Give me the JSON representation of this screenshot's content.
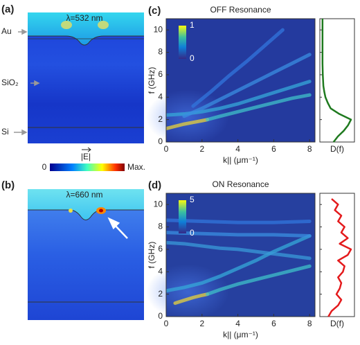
{
  "field_panels": [
    {
      "label": "(a)",
      "caption": "λ=532 nm",
      "layers": [
        "Au",
        "SiO₂",
        "Si"
      ]
    },
    {
      "label": "(b)",
      "caption": "λ=660 nm"
    }
  ],
  "field_colorbar": {
    "label": "|E|",
    "low": 0,
    "high": "Max."
  },
  "chart_data": [
    {
      "type": "line",
      "panel_label": "(c)",
      "title": "OFF Resonance",
      "xlabel": "k|| (μm⁻¹)",
      "ylabel": "f (GHz)",
      "xlim": [
        0,
        8.3
      ],
      "xticks": [
        0,
        2,
        4,
        6,
        8
      ],
      "ylim": [
        0,
        11
      ],
      "yticks": [
        0,
        2,
        4,
        6,
        8,
        10
      ],
      "background": "#243a9e",
      "colorbar": {
        "ticks": [
          0,
          1
        ]
      },
      "series": [
        {
          "color": "#e8d23a",
          "x": [
            0,
            0.5,
            1,
            1.5,
            2,
            2.3
          ],
          "values": [
            1.2,
            1.4,
            1.6,
            1.75,
            1.9,
            2.0
          ]
        },
        {
          "color": "#3fc0c8",
          "x": [
            2.3,
            3,
            4,
            5,
            6,
            7,
            8
          ],
          "values": [
            2.0,
            2.3,
            2.7,
            3.1,
            3.5,
            3.9,
            4.2
          ]
        },
        {
          "color": "#36a8d8",
          "x": [
            0,
            1,
            2,
            3,
            4,
            5,
            6,
            7,
            8
          ],
          "values": [
            2.4,
            2.5,
            2.7,
            3.0,
            3.4,
            3.9,
            4.4,
            4.9,
            5.4
          ]
        },
        {
          "color": "#3a8ee0",
          "x": [
            1,
            2,
            3,
            4,
            5,
            6,
            7,
            8
          ],
          "values": [
            2.3,
            3.0,
            3.8,
            4.6,
            5.4,
            6.2,
            7.0,
            7.8
          ]
        },
        {
          "color": "#3275dc",
          "x": [
            1.5,
            2.5,
            3.5,
            4.5,
            5.5,
            6.5
          ],
          "values": [
            3.2,
            4.5,
            5.9,
            7.2,
            8.6,
            10.0
          ]
        }
      ],
      "density": {
        "xlabel": "D(f)",
        "color": "#1f7a1f",
        "f": [
          0,
          0.5,
          1,
          1.5,
          2,
          2.5,
          3,
          3.5,
          4,
          4.5,
          5,
          6,
          7,
          8,
          9,
          10,
          11
        ],
        "values": [
          0.4,
          0.55,
          0.75,
          0.9,
          1.0,
          0.6,
          0.3,
          0.2,
          0.12,
          0.08,
          0.05,
          0.03,
          0.02,
          0.02,
          0.02,
          0.02,
          0.02
        ]
      }
    },
    {
      "type": "line",
      "panel_label": "(d)",
      "title": "ON Resonance",
      "xlabel": "k|| (μm⁻¹)",
      "ylabel": "f (GHz)",
      "xlim": [
        0,
        8.3
      ],
      "xticks": [
        0,
        2,
        4,
        6,
        8
      ],
      "ylim": [
        0,
        11
      ],
      "yticks": [
        0,
        2,
        4,
        6,
        8,
        10
      ],
      "background": "#26409f",
      "colorbar": {
        "ticks": [
          0,
          5
        ]
      },
      "series": [
        {
          "color": "#e8d23a",
          "x": [
            0.5,
            1,
            1.5,
            2,
            2.3
          ],
          "values": [
            1.2,
            1.45,
            1.7,
            1.9,
            2.0
          ]
        },
        {
          "color": "#3fc0c8",
          "x": [
            2.3,
            3,
            4,
            5,
            6,
            7,
            8
          ],
          "values": [
            2.0,
            2.4,
            2.9,
            3.3,
            3.7,
            4.1,
            4.5
          ]
        },
        {
          "color": "#36a8d8",
          "x": [
            0,
            1,
            2,
            3,
            4,
            5,
            6,
            7,
            8
          ],
          "values": [
            2.3,
            2.6,
            3.0,
            3.6,
            4.3,
            5.0,
            5.8,
            6.5,
            7.2
          ]
        },
        {
          "color": "#3a9ad8",
          "x": [
            0,
            1,
            2,
            3,
            4,
            5,
            6,
            7,
            8
          ],
          "values": [
            6.6,
            6.5,
            6.3,
            6.1,
            6.0,
            5.8,
            5.6,
            5.4,
            5.2
          ]
        },
        {
          "color": "#3a8ee0",
          "x": [
            0,
            2,
            4,
            6,
            8
          ],
          "values": [
            7.5,
            7.4,
            7.3,
            7.3,
            7.2
          ]
        },
        {
          "color": "#3275dc",
          "x": [
            0,
            2,
            4,
            6,
            8
          ],
          "values": [
            8.6,
            8.5,
            8.4,
            8.4,
            8.5
          ]
        }
      ],
      "density": {
        "xlabel": "D(f)",
        "color": "#e41a1c",
        "f": [
          0,
          0.5,
          1,
          1.5,
          2,
          2.5,
          3,
          3.5,
          4,
          4.5,
          5,
          5.5,
          6,
          6.5,
          7,
          7.5,
          8,
          8.5,
          9,
          9.5,
          10,
          10.5
        ],
        "values": [
          0.2,
          0.3,
          0.5,
          0.6,
          0.45,
          0.55,
          0.6,
          0.5,
          0.65,
          0.7,
          0.5,
          0.8,
          0.9,
          0.55,
          0.8,
          0.6,
          0.7,
          0.5,
          0.6,
          0.4,
          0.5,
          0.3
        ]
      }
    }
  ]
}
